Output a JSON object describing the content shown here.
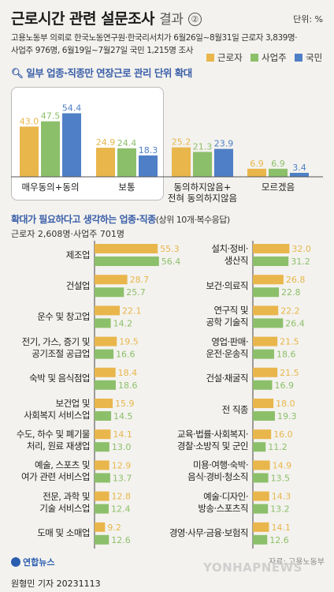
{
  "header": {
    "title": "근로시간 관련 설문조사",
    "title_suffix": "결과",
    "badge": "②",
    "unit": "단위: %",
    "source_line1": "고용노동부 의뢰로 한국노동연구원·한국리서치가 6월26일~8월31일 근로자 3,839명·",
    "source_line2": "사업주 976명, 6월19일~7월27일 국민 1,215명 조사"
  },
  "legend": [
    {
      "name": "근로자",
      "color": "#e9b64c"
    },
    {
      "name": "사업주",
      "color": "#8cbf6a"
    },
    {
      "name": "국민",
      "color": "#4f7fc6"
    }
  ],
  "section1": {
    "title": "일부 업종·직종만 연장근로 관리 단위 확대"
  },
  "section2": {
    "title": "확대가 필요하다고 생각하는 업종·직종",
    "note": "(상위 10개·복수응답)",
    "sub": "근로자 2,608명·사업주 701명"
  },
  "footer": {
    "logo": "연합뉴스",
    "watermark": "YONHAPNEWS",
    "source": "자료: 고용노동부",
    "credit": "원형민 기자  20231113"
  },
  "chart_data": [
    {
      "type": "bar",
      "categories": [
        "매우동의+동의",
        "보통",
        "동의하지않음+\n전혀 동의하지않음",
        "모르겠음"
      ],
      "series": [
        {
          "name": "근로자",
          "color": "#e9b64c",
          "values": [
            43.0,
            24.9,
            25.2,
            6.9
          ]
        },
        {
          "name": "사업주",
          "color": "#8cbf6a",
          "values": [
            47.5,
            24.4,
            21.3,
            6.9
          ]
        },
        {
          "name": "국민",
          "color": "#4f7fc6",
          "values": [
            54.4,
            18.3,
            23.9,
            3.4
          ]
        }
      ]
    },
    {
      "type": "bar",
      "orientation": "horizontal",
      "categories": [
        "제조업",
        "건설업",
        "운수 및 창고업",
        "전기, 가스, 증기 및\n공기조절 공급업",
        "숙박 및 음식점업",
        "보건업 및\n사회복지 서비스업",
        "수도, 하수 및 폐기물\n처리, 원료 재생업",
        "예술, 스포츠 및\n여가 관련 서비스업",
        "전문, 과학 및\n기술 서비스업",
        "도매 및 소매업"
      ],
      "series": [
        {
          "name": "근로자",
          "color": "#e9b64c",
          "values": [
            55.3,
            28.7,
            22.1,
            19.5,
            18.4,
            15.9,
            14.1,
            12.9,
            12.8,
            9.2
          ]
        },
        {
          "name": "사업주",
          "color": "#8cbf6a",
          "values": [
            56.4,
            25.7,
            14.2,
            16.6,
            18.6,
            14.5,
            13.0,
            13.7,
            12.4,
            12.6
          ]
        }
      ]
    },
    {
      "type": "bar",
      "orientation": "horizontal",
      "categories": [
        "설치·정비·\n생산직",
        "보건·의료직",
        "연구직 및\n공학 기술직",
        "영업·판매·\n운전·운송직",
        "건설·채굴직",
        "전 직종",
        "교육·법률·사회복지·\n경찰·소방직 및 군인",
        "미용·여행·숙박·\n음식·경비·청소직",
        "예술·디자인·\n방송·스포츠직",
        "경영·사무·금융·보험직"
      ],
      "series": [
        {
          "name": "근로자",
          "color": "#e9b64c",
          "values": [
            32.0,
            26.8,
            22.2,
            21.5,
            21.5,
            18.0,
            16.0,
            14.9,
            14.3,
            14.1
          ]
        },
        {
          "name": "사업주",
          "color": "#8cbf6a",
          "values": [
            31.2,
            22.8,
            26.4,
            18.6,
            16.9,
            19.3,
            11.2,
            13.5,
            13.2,
            12.6
          ]
        }
      ]
    }
  ]
}
